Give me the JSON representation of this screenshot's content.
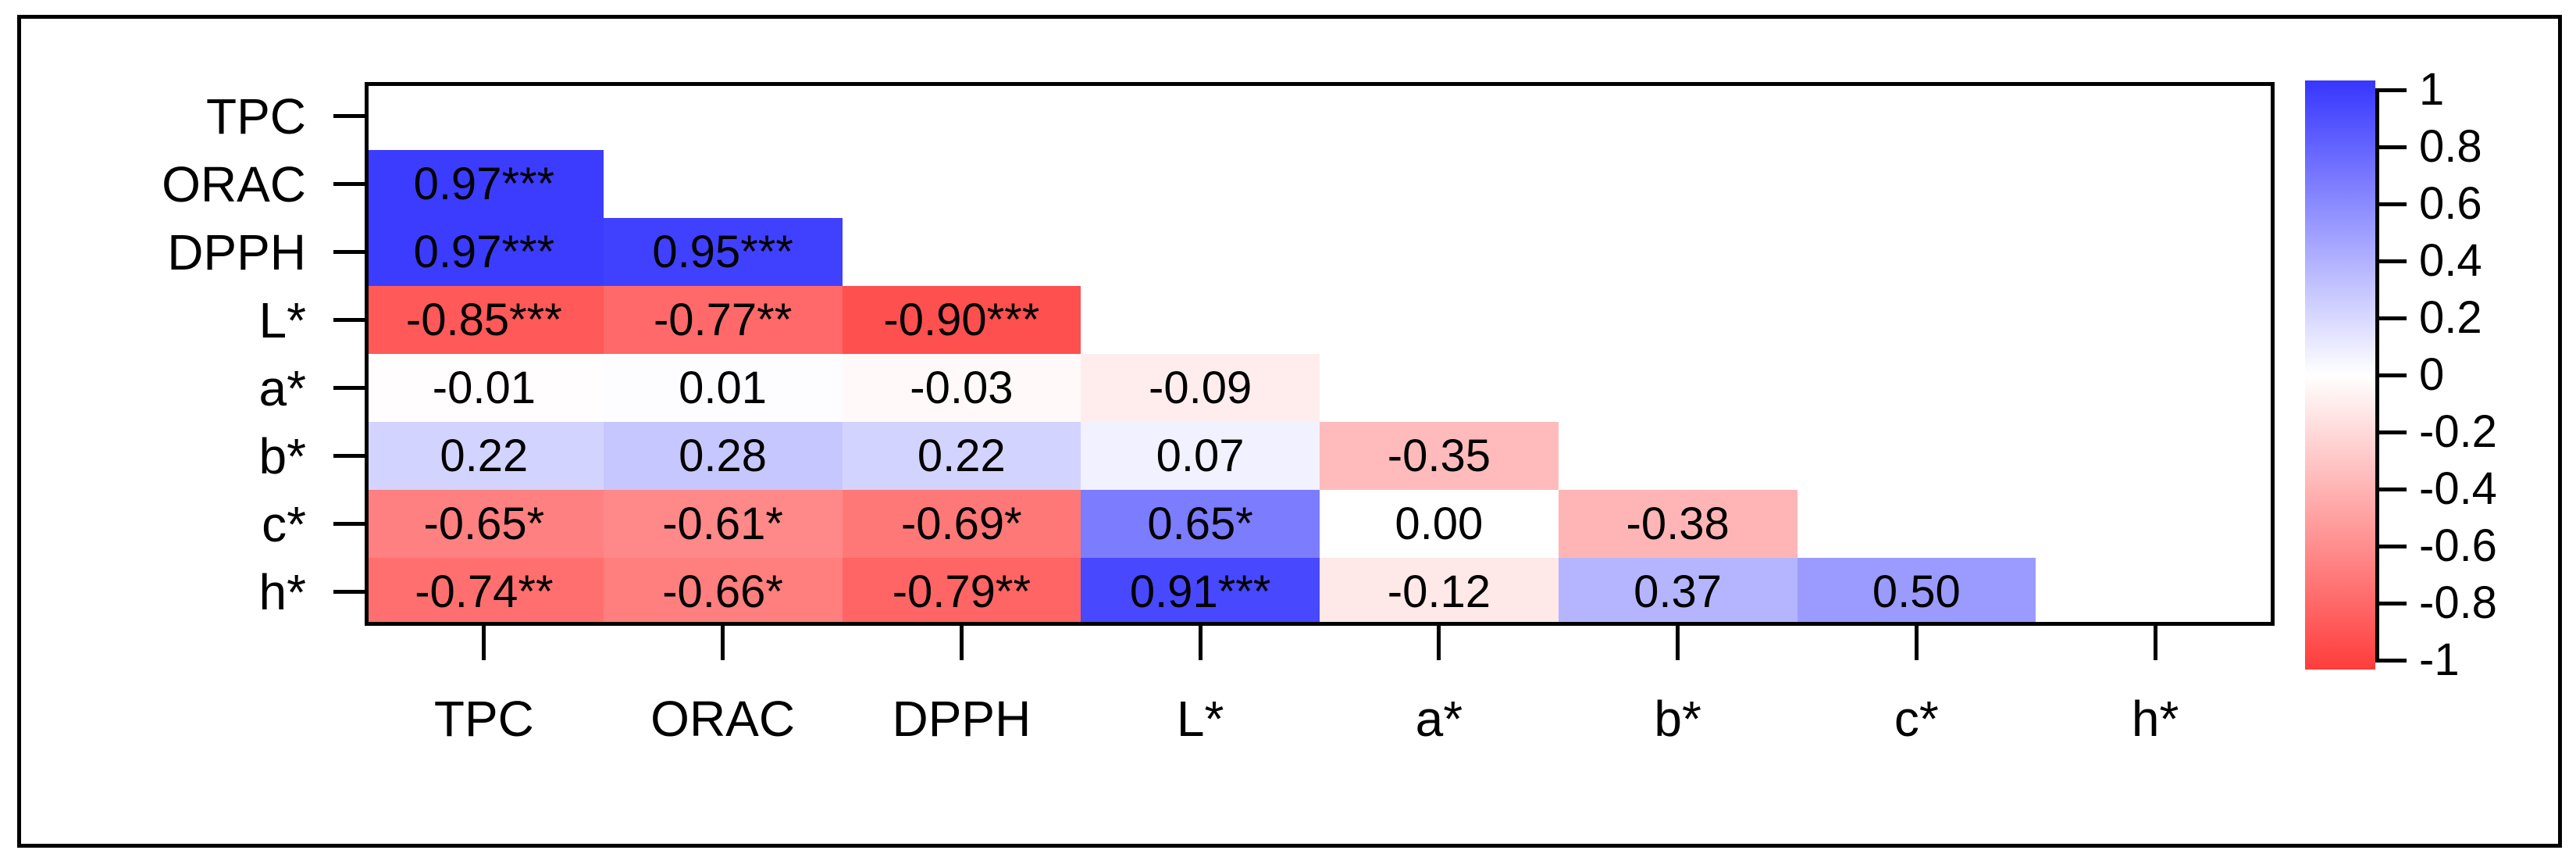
{
  "chart_data": {
    "type": "heatmap",
    "subtype": "lower-triangle correlation matrix with significance stars",
    "variables": [
      "TPC",
      "ORAC",
      "DPPH",
      "L*",
      "a*",
      "b*",
      "c*",
      "h*"
    ],
    "x_tick_labels": [
      "TPC",
      "ORAC",
      "DPPH",
      "L*",
      "a*",
      "b*",
      "c*",
      "h*"
    ],
    "y_tick_labels": [
      "TPC",
      "ORAC",
      "DPPH",
      "L*",
      "a*",
      "b*",
      "c*",
      "h*"
    ],
    "grid": false,
    "cells": [
      {
        "row": "ORAC",
        "col": "TPC",
        "value": 0.97,
        "label": "0.97***"
      },
      {
        "row": "DPPH",
        "col": "TPC",
        "value": 0.97,
        "label": "0.97***"
      },
      {
        "row": "DPPH",
        "col": "ORAC",
        "value": 0.95,
        "label": "0.95***"
      },
      {
        "row": "L*",
        "col": "TPC",
        "value": -0.85,
        "label": "-0.85***"
      },
      {
        "row": "L*",
        "col": "ORAC",
        "value": -0.77,
        "label": "-0.77**"
      },
      {
        "row": "L*",
        "col": "DPPH",
        "value": -0.9,
        "label": "-0.90***"
      },
      {
        "row": "a*",
        "col": "TPC",
        "value": -0.01,
        "label": "-0.01"
      },
      {
        "row": "a*",
        "col": "ORAC",
        "value": 0.01,
        "label": "0.01"
      },
      {
        "row": "a*",
        "col": "DPPH",
        "value": -0.03,
        "label": "-0.03"
      },
      {
        "row": "a*",
        "col": "L*",
        "value": -0.09,
        "label": "-0.09"
      },
      {
        "row": "b*",
        "col": "TPC",
        "value": 0.22,
        "label": "0.22"
      },
      {
        "row": "b*",
        "col": "ORAC",
        "value": 0.28,
        "label": "0.28"
      },
      {
        "row": "b*",
        "col": "DPPH",
        "value": 0.22,
        "label": "0.22"
      },
      {
        "row": "b*",
        "col": "L*",
        "value": 0.07,
        "label": "0.07"
      },
      {
        "row": "b*",
        "col": "a*",
        "value": -0.35,
        "label": "-0.35"
      },
      {
        "row": "c*",
        "col": "TPC",
        "value": -0.65,
        "label": "-0.65*"
      },
      {
        "row": "c*",
        "col": "ORAC",
        "value": -0.61,
        "label": "-0.61*"
      },
      {
        "row": "c*",
        "col": "DPPH",
        "value": -0.69,
        "label": "-0.69*"
      },
      {
        "row": "c*",
        "col": "L*",
        "value": 0.65,
        "label": "0.65*"
      },
      {
        "row": "c*",
        "col": "a*",
        "value": 0.0,
        "label": "0.00"
      },
      {
        "row": "c*",
        "col": "b*",
        "value": -0.38,
        "label": "-0.38"
      },
      {
        "row": "h*",
        "col": "TPC",
        "value": -0.74,
        "label": "-0.74**"
      },
      {
        "row": "h*",
        "col": "ORAC",
        "value": -0.66,
        "label": "-0.66*"
      },
      {
        "row": "h*",
        "col": "DPPH",
        "value": -0.79,
        "label": "-0.79**"
      },
      {
        "row": "h*",
        "col": "L*",
        "value": 0.91,
        "label": "0.91***"
      },
      {
        "row": "h*",
        "col": "a*",
        "value": -0.12,
        "label": "-0.12"
      },
      {
        "row": "h*",
        "col": "b*",
        "value": 0.37,
        "label": "0.37"
      },
      {
        "row": "h*",
        "col": "c*",
        "value": 0.5,
        "label": "0.50"
      }
    ],
    "colorbar": {
      "position": "right",
      "range": [
        -1,
        1
      ],
      "tick_labels": [
        "1",
        "0.8",
        "0.6",
        "0.4",
        "0.2",
        "0",
        "-0.2",
        "-0.4",
        "-0.6",
        "-0.8",
        "-1"
      ],
      "max_color": "#3636FF",
      "mid_color": "#FFFFFF",
      "min_color": "#FF3C3C"
    }
  }
}
